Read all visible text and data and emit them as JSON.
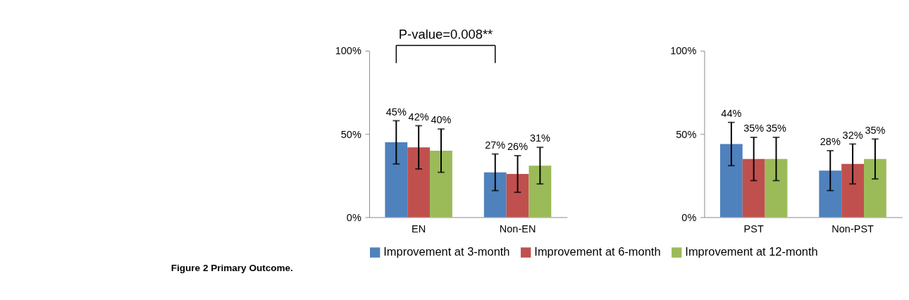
{
  "chart_data": [
    {
      "type": "bar",
      "categories": [
        "EN",
        "Non-EN"
      ],
      "ylim": [
        0,
        100
      ],
      "yticks": [
        {
          "value": 0,
          "label": "0%"
        },
        {
          "value": 50,
          "label": "50%"
        },
        {
          "value": 100,
          "label": "100%"
        }
      ],
      "grid": false,
      "legend": "bottom",
      "series": [
        {
          "name": "Improvement at 3-month",
          "color": "#4f81bd",
          "values": [
            45,
            27
          ],
          "errors": [
            13,
            11
          ],
          "value_labels": [
            "45%",
            "27%"
          ]
        },
        {
          "name": "Improvement at 6-month",
          "color": "#c0504d",
          "values": [
            42,
            26
          ],
          "errors": [
            13,
            11
          ],
          "value_labels": [
            "42%",
            "26%"
          ]
        },
        {
          "name": "Improvement at 12-month",
          "color": "#9bbb59",
          "values": [
            40,
            31
          ],
          "errors": [
            13,
            11
          ],
          "value_labels": [
            "40%",
            "31%"
          ]
        }
      ],
      "annotations": [
        "P-value=0.008**",
        "Figure 2 Primary Outcome."
      ]
    },
    {
      "type": "bar",
      "categories": [
        "PST",
        "Non-PST"
      ],
      "ylim": [
        0,
        100
      ],
      "yticks": [
        {
          "value": 0,
          "label": "0%"
        },
        {
          "value": 50,
          "label": "50%"
        },
        {
          "value": 100,
          "label": "100%"
        }
      ],
      "grid": false,
      "legend": "bottom",
      "series": [
        {
          "name": "Improvement at 3-month",
          "color": "#4f81bd",
          "values": [
            44,
            28
          ],
          "errors": [
            13,
            12
          ],
          "value_labels": [
            "44%",
            "28%"
          ]
        },
        {
          "name": "Improvement at 6-month",
          "color": "#c0504d",
          "values": [
            35,
            32
          ],
          "errors": [
            13,
            12
          ],
          "value_labels": [
            "35%",
            "32%"
          ]
        },
        {
          "name": "Improvement at 12-month",
          "color": "#9bbb59",
          "values": [
            35,
            35
          ],
          "errors": [
            13,
            12
          ],
          "value_labels": [
            "35%",
            "35%"
          ]
        }
      ]
    }
  ]
}
